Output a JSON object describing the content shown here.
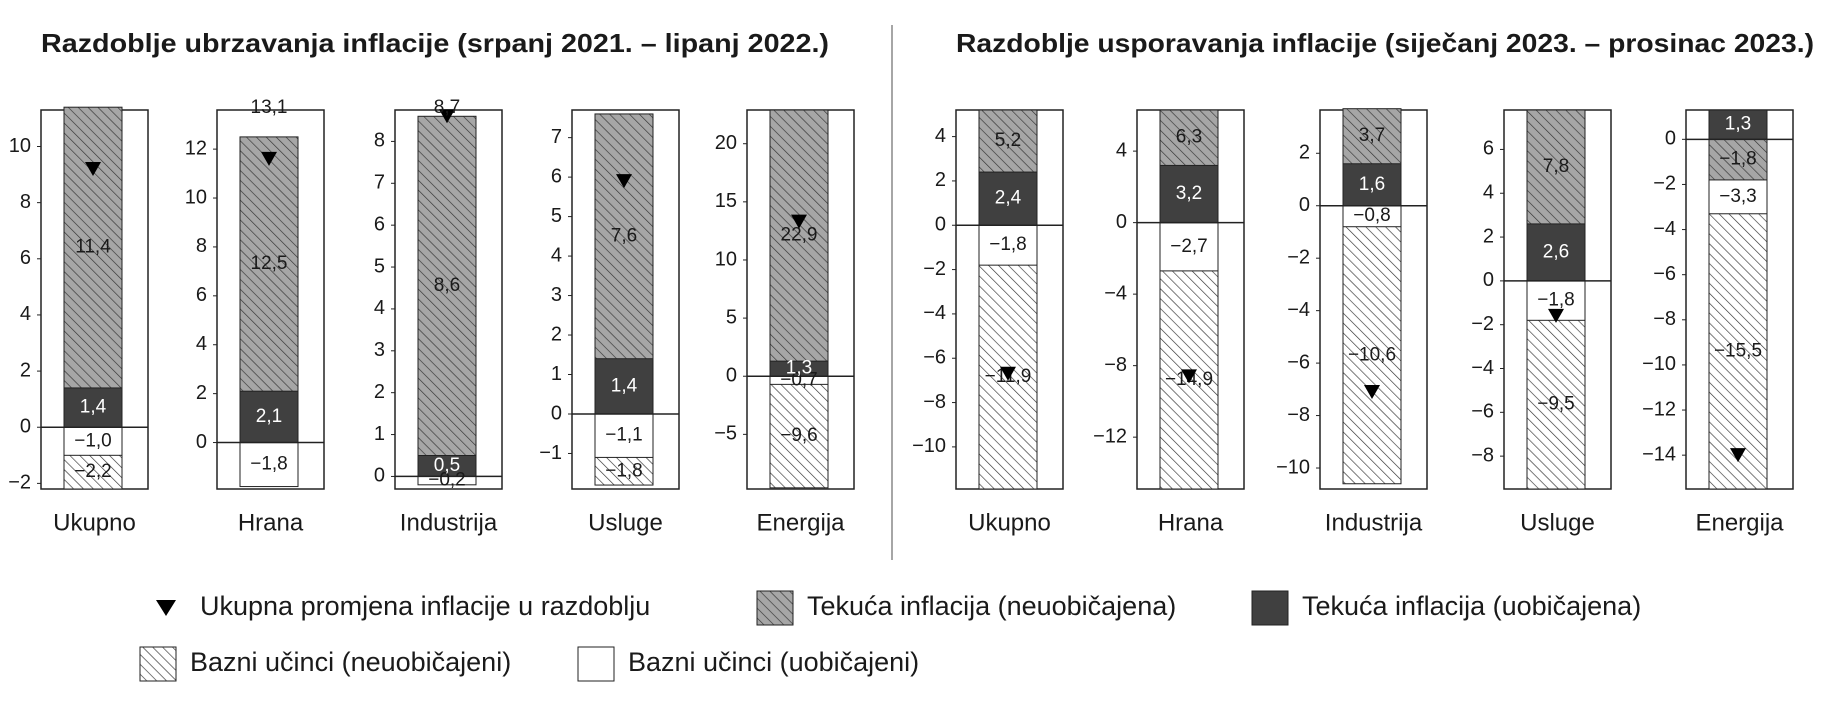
{
  "chart_data": [
    {
      "type": "bar",
      "title": "Razdoblje ubrzavanja inflacije (srpanj 2021. – lipanj 2022.)",
      "categories": [
        "Ukupno"
      ],
      "ylim": [
        -2.2,
        11.3
      ],
      "yticks": [
        {
          "value": -2,
          "label": "−2"
        },
        0,
        2,
        4,
        6,
        8,
        10
      ],
      "series": [
        {
          "name": "Tekuća inflacija (neuobičajena)",
          "color": "#a6a6a6",
          "hatch": true,
          "values": [
            11.4
          ],
          "value_labels": [
            "11,4"
          ]
        },
        {
          "name": "Tekuća inflacija (uobičajena)",
          "color": "#404040",
          "values": [
            1.4
          ],
          "value_labels": [
            "1,4"
          ]
        },
        {
          "name": "Bazni učinci (neuobičajeni)",
          "color": "#ffffff",
          "hatch": true,
          "values": [
            -2.2
          ],
          "value_labels": [
            "−2,2"
          ]
        },
        {
          "name": "Bazni učinci (uobičajeni)",
          "color": "#ffffff",
          "values": [
            -1.0
          ],
          "value_labels": [
            "−1,0"
          ]
        },
        {
          "name": "Ukupna promjena inflacije u razdoblju",
          "color": "#000000",
          "marker": "triangle",
          "values": [
            9.2
          ]
        }
      ]
    },
    {
      "type": "bar",
      "categories": [
        "Hrana"
      ],
      "ylim": [
        -1.9,
        13.6
      ],
      "yticks": [
        0,
        2,
        4,
        6,
        8,
        10,
        12
      ],
      "annotation": "13,1",
      "series": [
        {
          "name": "Tekuća inflacija (neuobičajena)",
          "color": "#a6a6a6",
          "hatch": true,
          "values": [
            12.5
          ],
          "value_labels": [
            "12,5"
          ]
        },
        {
          "name": "Tekuća inflacija (uobičajena)",
          "color": "#404040",
          "values": [
            2.1
          ],
          "value_labels": [
            "2,1"
          ]
        },
        {
          "name": "Bazni učinci (neuobičajeni)",
          "color": "#ffffff",
          "hatch": true,
          "values": [
            null
          ],
          "value_labels": [
            null
          ]
        },
        {
          "name": "Bazni učinci (uobičajeni)",
          "color": "#ffffff",
          "values": [
            -1.8
          ],
          "value_labels": [
            "−1,8"
          ]
        },
        {
          "name": "Ukupna promjena inflacije u razdoblju",
          "color": "#000000",
          "marker": "triangle",
          "values": [
            11.6
          ]
        }
      ]
    },
    {
      "type": "bar",
      "categories": [
        "Industrija"
      ],
      "ylim": [
        -0.3,
        8.75
      ],
      "yticks": [
        0,
        1,
        2,
        3,
        4,
        5,
        6,
        7,
        8
      ],
      "annotation": "8,7",
      "series": [
        {
          "name": "Tekuća inflacija (neuobičajena)",
          "color": "#a6a6a6",
          "hatch": true,
          "values": [
            8.6
          ],
          "value_labels": [
            "8,6"
          ]
        },
        {
          "name": "Tekuća inflacija (uobičajena)",
          "color": "#404040",
          "values": [
            0.5
          ],
          "value_labels": [
            "0,5"
          ]
        },
        {
          "name": "Bazni učinci (neuobičajeni)",
          "color": "#ffffff",
          "hatch": true,
          "values": [
            null
          ],
          "value_labels": [
            null
          ]
        },
        {
          "name": "Bazni učinci (uobičajeni)",
          "color": "#ffffff",
          "values": [
            -0.2
          ],
          "value_labels": [
            "−0,2"
          ]
        },
        {
          "name": "Ukupna promjena inflacije u razdoblju",
          "color": "#000000",
          "marker": "triangle",
          "values": [
            8.6
          ]
        }
      ]
    },
    {
      "type": "bar",
      "categories": [
        "Usluge"
      ],
      "ylim": [
        -1.9,
        7.7
      ],
      "yticks": [
        {
          "value": -1,
          "label": "−1"
        },
        0,
        1,
        2,
        3,
        4,
        5,
        6,
        7
      ],
      "series": [
        {
          "name": "Tekuća inflacija (neuobičajena)",
          "color": "#a6a6a6",
          "hatch": true,
          "values": [
            7.6
          ],
          "value_labels": [
            "7,6"
          ]
        },
        {
          "name": "Tekuća inflacija (uobičajena)",
          "color": "#404040",
          "values": [
            1.4
          ],
          "value_labels": [
            "1,4"
          ]
        },
        {
          "name": "Bazni učinci (neuobičajeni)",
          "color": "#ffffff",
          "hatch": true,
          "values": [
            -1.8
          ],
          "value_labels": [
            "−1,8"
          ]
        },
        {
          "name": "Bazni učinci (uobičajeni)",
          "color": "#ffffff",
          "values": [
            -1.1
          ],
          "value_labels": [
            "−1,1"
          ]
        },
        {
          "name": "Ukupna promjena inflacije u razdoblju",
          "color": "#000000",
          "marker": "triangle",
          "values": [
            5.9
          ]
        }
      ]
    },
    {
      "type": "bar",
      "categories": [
        "Energija"
      ],
      "ylim": [
        -9.7,
        22.9
      ],
      "yticks": [
        {
          "value": -5,
          "label": "−5"
        },
        0,
        5,
        10,
        15,
        20
      ],
      "series": [
        {
          "name": "Tekuća inflacija (neuobičajena)",
          "color": "#a6a6a6",
          "hatch": true,
          "values": [
            22.9
          ],
          "value_labels": [
            "22,9"
          ]
        },
        {
          "name": "Tekuća inflacija (uobičajena)",
          "color": "#404040",
          "values": [
            1.3
          ],
          "value_labels": [
            "1,3"
          ]
        },
        {
          "name": "Bazni učinci (neuobičajeni)",
          "color": "#ffffff",
          "hatch": true,
          "values": [
            -9.6
          ],
          "value_labels": [
            "−9,6"
          ]
        },
        {
          "name": "Bazni učinci (uobičajeni)",
          "color": "#ffffff",
          "values": [
            -0.7
          ],
          "value_labels": [
            "−0,7"
          ]
        },
        {
          "name": "Ukupna promjena inflacije u razdoblju",
          "color": "#000000",
          "marker": "triangle",
          "values": [
            13.3
          ]
        }
      ]
    },
    {
      "type": "bar",
      "title": "Razdoblje usporavanja inflacije (siječanj 2023. – prosinac 2023.)",
      "categories": [
        "Ukupno"
      ],
      "ylim": [
        -11.9,
        5.2
      ],
      "yticks": [
        {
          "value": -10,
          "label": "−10"
        },
        {
          "value": -8,
          "label": "−8"
        },
        {
          "value": -6,
          "label": "−6"
        },
        {
          "value": -4,
          "label": "−4"
        },
        {
          "value": -2,
          "label": "−2"
        },
        0,
        2,
        4
      ],
      "series": [
        {
          "name": "Tekuća inflacija (neuobičajena)",
          "color": "#a6a6a6",
          "hatch": true,
          "values": [
            5.2
          ],
          "value_labels": [
            "5,2"
          ]
        },
        {
          "name": "Tekuća inflacija (uobičajena)",
          "color": "#404040",
          "values": [
            2.4
          ],
          "value_labels": [
            "2,4"
          ]
        },
        {
          "name": "Bazni učinci (neuobičajeni)",
          "color": "#ffffff",
          "hatch": true,
          "values": [
            -11.9
          ],
          "value_labels": [
            "−11,9"
          ]
        },
        {
          "name": "Bazni učinci (uobičajeni)",
          "color": "#ffffff",
          "values": [
            -1.8
          ],
          "value_labels": [
            "−1,8"
          ]
        },
        {
          "name": "Ukupna promjena inflacije u razdoblju",
          "color": "#000000",
          "marker": "triangle",
          "values": [
            -6.7
          ]
        }
      ]
    },
    {
      "type": "bar",
      "categories": [
        "Hrana"
      ],
      "ylim": [
        -14.9,
        6.3
      ],
      "yticks": [
        {
          "value": -12,
          "label": "−12"
        },
        {
          "value": -8,
          "label": "−8"
        },
        {
          "value": -4,
          "label": "−4"
        },
        0,
        4
      ],
      "series": [
        {
          "name": "Tekuća inflacija (neuobičajena)",
          "color": "#a6a6a6",
          "hatch": true,
          "values": [
            6.3
          ],
          "value_labels": [
            "6,3"
          ]
        },
        {
          "name": "Tekuća inflacija (uobičajena)",
          "color": "#404040",
          "values": [
            3.2
          ],
          "value_labels": [
            "3,2"
          ]
        },
        {
          "name": "Bazni učinci (neuobičajeni)",
          "color": "#ffffff",
          "hatch": true,
          "values": [
            -14.9
          ],
          "value_labels": [
            "−14,9"
          ]
        },
        {
          "name": "Bazni učinci (uobičajeni)",
          "color": "#ffffff",
          "values": [
            -2.7
          ],
          "value_labels": [
            "−2,7"
          ]
        },
        {
          "name": "Ukupna promjena inflacije u razdoblju",
          "color": "#000000",
          "marker": "triangle",
          "values": [
            -8.6
          ]
        }
      ]
    },
    {
      "type": "bar",
      "categories": [
        "Industrija"
      ],
      "ylim": [
        -10.8,
        3.65
      ],
      "yticks": [
        {
          "value": -10,
          "label": "−10"
        },
        {
          "value": -8,
          "label": "−8"
        },
        {
          "value": -6,
          "label": "−6"
        },
        {
          "value": -4,
          "label": "−4"
        },
        {
          "value": -2,
          "label": "−2"
        },
        0,
        2
      ],
      "series": [
        {
          "name": "Tekuća inflacija (neuobičajena)",
          "color": "#a6a6a6",
          "hatch": true,
          "values": [
            3.7
          ],
          "value_labels": [
            "3,7"
          ]
        },
        {
          "name": "Tekuća inflacija (uobičajena)",
          "color": "#404040",
          "values": [
            1.6
          ],
          "value_labels": [
            "1,6"
          ]
        },
        {
          "name": "Bazni učinci (neuobičajeni)",
          "color": "#ffffff",
          "hatch": true,
          "values": [
            -10.6
          ],
          "value_labels": [
            "−10,6"
          ]
        },
        {
          "name": "Bazni učinci (uobičajeni)",
          "color": "#ffffff",
          "values": [
            -0.8
          ],
          "value_labels": [
            "−0,8"
          ]
        },
        {
          "name": "Ukupna promjena inflacije u razdoblju",
          "color": "#000000",
          "marker": "triangle",
          "values": [
            -7.1
          ]
        }
      ]
    },
    {
      "type": "bar",
      "categories": [
        "Usluge"
      ],
      "ylim": [
        -9.5,
        7.8
      ],
      "yticks": [
        {
          "value": -8,
          "label": "−8"
        },
        {
          "value": -6,
          "label": "−6"
        },
        {
          "value": -4,
          "label": "−4"
        },
        {
          "value": -2,
          "label": "−2"
        },
        0,
        2,
        4,
        6
      ],
      "series": [
        {
          "name": "Tekuća inflacija (neuobičajena)",
          "color": "#a6a6a6",
          "hatch": true,
          "values": [
            7.8
          ],
          "value_labels": [
            "7,8"
          ]
        },
        {
          "name": "Tekuća inflacija (uobičajena)",
          "color": "#404040",
          "values": [
            2.6
          ],
          "value_labels": [
            "2,6"
          ]
        },
        {
          "name": "Bazni učinci (neuobičajeni)",
          "color": "#ffffff",
          "hatch": true,
          "values": [
            -9.5
          ],
          "value_labels": [
            "−9,5"
          ]
        },
        {
          "name": "Bazni učinci (uobičajeni)",
          "color": "#ffffff",
          "values": [
            -1.8
          ],
          "value_labels": [
            "−1,8"
          ]
        },
        {
          "name": "Ukupna promjena inflacije u razdoblju",
          "color": "#000000",
          "marker": "triangle",
          "values": [
            -1.6
          ]
        }
      ]
    },
    {
      "type": "bar",
      "categories": [
        "Energija"
      ],
      "ylim": [
        -15.5,
        1.3
      ],
      "yticks": [
        {
          "value": -14,
          "label": "−14"
        },
        {
          "value": -12,
          "label": "−12"
        },
        {
          "value": -10,
          "label": "−10"
        },
        {
          "value": -8,
          "label": "−8"
        },
        {
          "value": -6,
          "label": "−6"
        },
        {
          "value": -4,
          "label": "−4"
        },
        {
          "value": -2,
          "label": "−2"
        },
        0
      ],
      "series": [
        {
          "name": "Tekuća inflacija (neuobičajena)",
          "color": "#a6a6a6",
          "hatch": true,
          "values": [
            -1.8
          ],
          "value_labels": [
            "−1,8"
          ]
        },
        {
          "name": "Tekuća inflacija (uobičajena)",
          "color": "#404040",
          "values": [
            1.3
          ],
          "value_labels": [
            "1,3"
          ]
        },
        {
          "name": "Bazni učinci (neuobičajeni)",
          "color": "#ffffff",
          "hatch": true,
          "values": [
            -15.5
          ],
          "value_labels": [
            "−15,5"
          ]
        },
        {
          "name": "Bazni učinci (uobičajeni)",
          "color": "#ffffff",
          "values": [
            -3.3
          ],
          "value_labels": [
            "−3,3"
          ]
        },
        {
          "name": "Ukupna promjena inflacije u razdoblju",
          "color": "#000000",
          "marker": "triangle",
          "values": [
            -14.0
          ]
        }
      ]
    }
  ]
}
